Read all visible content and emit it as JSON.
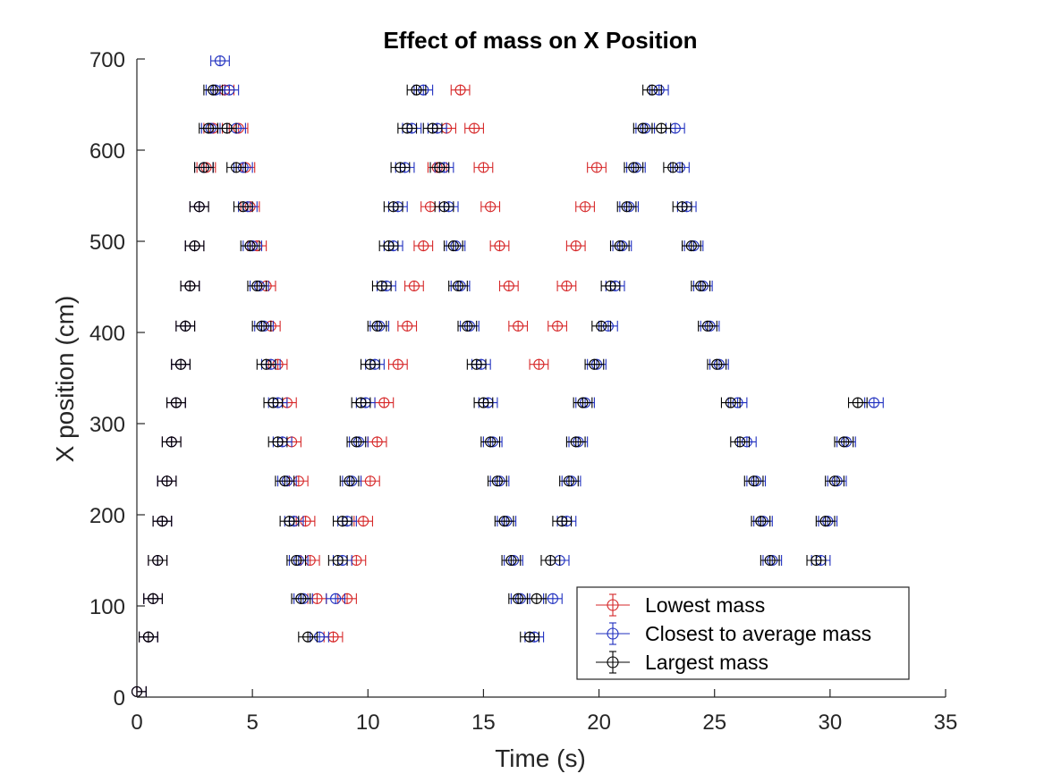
{
  "chart_data": {
    "type": "scatter",
    "title": "Effect of mass on X Position",
    "xlabel": "Time (s)",
    "ylabel": "X position (cm)",
    "xlim": [
      0,
      35
    ],
    "ylim": [
      0,
      700
    ],
    "xticks": [
      "0",
      "5",
      "10",
      "15",
      "20",
      "25",
      "30",
      "35"
    ],
    "yticks": [
      "0",
      "100",
      "200",
      "300",
      "400",
      "500",
      "600",
      "700"
    ],
    "grid": false,
    "legend_position": "bottom-right",
    "series": [
      {
        "name": "Lowest mass",
        "color": "#d62728",
        "marker": "circle",
        "points": [
          [
            0.0,
            6
          ],
          [
            0.5,
            66
          ],
          [
            0.7,
            108
          ],
          [
            0.9,
            150
          ],
          [
            1.1,
            193
          ],
          [
            1.3,
            237
          ],
          [
            1.5,
            280
          ],
          [
            1.7,
            323
          ],
          [
            1.9,
            365
          ],
          [
            2.1,
            407
          ],
          [
            2.3,
            451
          ],
          [
            2.5,
            495
          ],
          [
            2.7,
            538
          ],
          [
            3.0,
            581
          ],
          [
            3.3,
            624
          ],
          [
            3.8,
            666
          ],
          [
            8.5,
            66
          ],
          [
            9.1,
            108
          ],
          [
            9.5,
            150
          ],
          [
            9.8,
            193
          ],
          [
            10.1,
            237
          ],
          [
            10.4,
            280
          ],
          [
            10.7,
            323
          ],
          [
            11.3,
            365
          ],
          [
            11.7,
            407
          ],
          [
            12.0,
            451
          ],
          [
            12.4,
            495
          ],
          [
            12.7,
            538
          ],
          [
            13.0,
            581
          ],
          [
            13.4,
            624
          ],
          [
            14.0,
            666
          ],
          [
            15.3,
            538
          ],
          [
            15.7,
            495
          ],
          [
            16.1,
            451
          ],
          [
            16.5,
            407
          ],
          [
            17.4,
            365
          ],
          [
            18.2,
            407
          ],
          [
            18.6,
            451
          ],
          [
            19.0,
            495
          ],
          [
            19.4,
            538
          ],
          [
            19.9,
            581
          ],
          [
            14.6,
            624
          ],
          [
            15.0,
            581
          ],
          [
            5.6,
            451
          ],
          [
            5.8,
            407
          ],
          [
            6.1,
            365
          ],
          [
            6.5,
            323
          ],
          [
            6.7,
            280
          ],
          [
            7.0,
            237
          ],
          [
            7.3,
            193
          ],
          [
            7.5,
            150
          ],
          [
            7.8,
            108
          ],
          [
            4.7,
            581
          ],
          [
            4.9,
            538
          ],
          [
            5.2,
            495
          ],
          [
            4.4,
            624
          ]
        ]
      },
      {
        "name": "Closest to average mass",
        "color": "#1f2fbf",
        "marker": "circle",
        "points": [
          [
            0.0,
            6
          ],
          [
            0.5,
            66
          ],
          [
            0.7,
            108
          ],
          [
            0.9,
            150
          ],
          [
            1.1,
            193
          ],
          [
            1.3,
            237
          ],
          [
            1.5,
            280
          ],
          [
            1.7,
            323
          ],
          [
            1.9,
            365
          ],
          [
            2.1,
            407
          ],
          [
            2.3,
            451
          ],
          [
            2.5,
            495
          ],
          [
            2.7,
            538
          ],
          [
            2.9,
            581
          ],
          [
            3.2,
            624
          ],
          [
            3.4,
            666
          ],
          [
            3.6,
            698
          ],
          [
            4.0,
            666
          ],
          [
            4.3,
            624
          ],
          [
            4.6,
            581
          ],
          [
            4.8,
            538
          ],
          [
            5.0,
            495
          ],
          [
            5.3,
            451
          ],
          [
            5.5,
            407
          ],
          [
            5.8,
            365
          ],
          [
            6.1,
            323
          ],
          [
            6.3,
            280
          ],
          [
            6.5,
            237
          ],
          [
            6.8,
            193
          ],
          [
            7.0,
            150
          ],
          [
            7.2,
            108
          ],
          [
            7.9,
            66
          ],
          [
            8.6,
            108
          ],
          [
            8.9,
            150
          ],
          [
            9.1,
            193
          ],
          [
            9.3,
            237
          ],
          [
            9.6,
            280
          ],
          [
            9.9,
            323
          ],
          [
            10.3,
            365
          ],
          [
            10.5,
            407
          ],
          [
            10.8,
            451
          ],
          [
            11.1,
            495
          ],
          [
            11.3,
            538
          ],
          [
            11.6,
            581
          ],
          [
            11.9,
            624
          ],
          [
            12.4,
            666
          ],
          [
            13.3,
            581
          ],
          [
            13.5,
            538
          ],
          [
            13.8,
            495
          ],
          [
            14.0,
            451
          ],
          [
            14.4,
            407
          ],
          [
            14.9,
            365
          ],
          [
            15.2,
            323
          ],
          [
            15.4,
            280
          ],
          [
            15.7,
            237
          ],
          [
            16.0,
            193
          ],
          [
            16.3,
            150
          ],
          [
            16.6,
            108
          ],
          [
            17.2,
            66
          ],
          [
            13.0,
            624
          ],
          [
            18.0,
            108
          ],
          [
            18.3,
            150
          ],
          [
            18.6,
            193
          ],
          [
            18.8,
            237
          ],
          [
            19.1,
            280
          ],
          [
            19.4,
            323
          ],
          [
            19.9,
            365
          ],
          [
            20.4,
            407
          ],
          [
            20.7,
            451
          ],
          [
            21.0,
            495
          ],
          [
            21.3,
            538
          ],
          [
            21.6,
            581
          ],
          [
            22.0,
            624
          ],
          [
            22.6,
            666
          ],
          [
            23.3,
            624
          ],
          [
            23.5,
            581
          ],
          [
            23.8,
            538
          ],
          [
            24.1,
            495
          ],
          [
            24.5,
            451
          ],
          [
            24.8,
            407
          ],
          [
            25.2,
            365
          ],
          [
            26.0,
            323
          ],
          [
            26.4,
            280
          ],
          [
            26.8,
            237
          ],
          [
            27.1,
            193
          ],
          [
            27.5,
            150
          ],
          [
            29.6,
            150
          ],
          [
            29.9,
            193
          ],
          [
            30.3,
            237
          ],
          [
            30.7,
            280
          ],
          [
            31.9,
            323
          ]
        ]
      },
      {
        "name": "Largest mass",
        "color": "#000000",
        "marker": "circle",
        "points": [
          [
            0.0,
            6
          ],
          [
            0.5,
            66
          ],
          [
            0.7,
            108
          ],
          [
            0.9,
            150
          ],
          [
            1.1,
            193
          ],
          [
            1.3,
            237
          ],
          [
            1.5,
            280
          ],
          [
            1.7,
            323
          ],
          [
            1.9,
            365
          ],
          [
            2.1,
            407
          ],
          [
            2.3,
            451
          ],
          [
            2.5,
            495
          ],
          [
            2.7,
            538
          ],
          [
            2.9,
            581
          ],
          [
            3.1,
            624
          ],
          [
            3.3,
            666
          ],
          [
            3.9,
            624
          ],
          [
            4.3,
            581
          ],
          [
            4.6,
            538
          ],
          [
            4.9,
            495
          ],
          [
            5.2,
            451
          ],
          [
            5.4,
            407
          ],
          [
            5.6,
            365
          ],
          [
            5.9,
            323
          ],
          [
            6.1,
            280
          ],
          [
            6.4,
            237
          ],
          [
            6.6,
            193
          ],
          [
            6.9,
            150
          ],
          [
            7.1,
            108
          ],
          [
            7.4,
            66
          ],
          [
            8.7,
            150
          ],
          [
            8.9,
            193
          ],
          [
            9.2,
            237
          ],
          [
            9.5,
            280
          ],
          [
            9.7,
            323
          ],
          [
            10.1,
            365
          ],
          [
            10.4,
            407
          ],
          [
            10.6,
            451
          ],
          [
            10.9,
            495
          ],
          [
            11.1,
            538
          ],
          [
            11.4,
            581
          ],
          [
            11.7,
            624
          ],
          [
            12.1,
            666
          ],
          [
            12.8,
            624
          ],
          [
            13.1,
            581
          ],
          [
            13.3,
            538
          ],
          [
            13.7,
            495
          ],
          [
            13.9,
            451
          ],
          [
            14.3,
            407
          ],
          [
            14.7,
            365
          ],
          [
            15.0,
            323
          ],
          [
            15.3,
            280
          ],
          [
            15.6,
            237
          ],
          [
            15.9,
            193
          ],
          [
            16.2,
            150
          ],
          [
            16.5,
            108
          ],
          [
            17.0,
            66
          ],
          [
            17.3,
            108
          ],
          [
            17.9,
            150
          ],
          [
            18.4,
            193
          ],
          [
            18.7,
            237
          ],
          [
            19.0,
            280
          ],
          [
            19.3,
            323
          ],
          [
            19.8,
            365
          ],
          [
            20.1,
            407
          ],
          [
            20.5,
            451
          ],
          [
            20.9,
            495
          ],
          [
            21.2,
            538
          ],
          [
            21.5,
            581
          ],
          [
            21.9,
            624
          ],
          [
            22.3,
            666
          ],
          [
            22.7,
            624
          ],
          [
            23.2,
            581
          ],
          [
            23.6,
            538
          ],
          [
            24.0,
            495
          ],
          [
            24.4,
            451
          ],
          [
            24.7,
            407
          ],
          [
            25.1,
            365
          ],
          [
            25.7,
            323
          ],
          [
            26.1,
            280
          ],
          [
            26.7,
            237
          ],
          [
            27.0,
            193
          ],
          [
            27.4,
            150
          ],
          [
            29.4,
            150
          ],
          [
            29.8,
            193
          ],
          [
            30.2,
            237
          ],
          [
            30.6,
            280
          ],
          [
            31.2,
            323
          ]
        ]
      }
    ],
    "x_error": 0.4
  }
}
